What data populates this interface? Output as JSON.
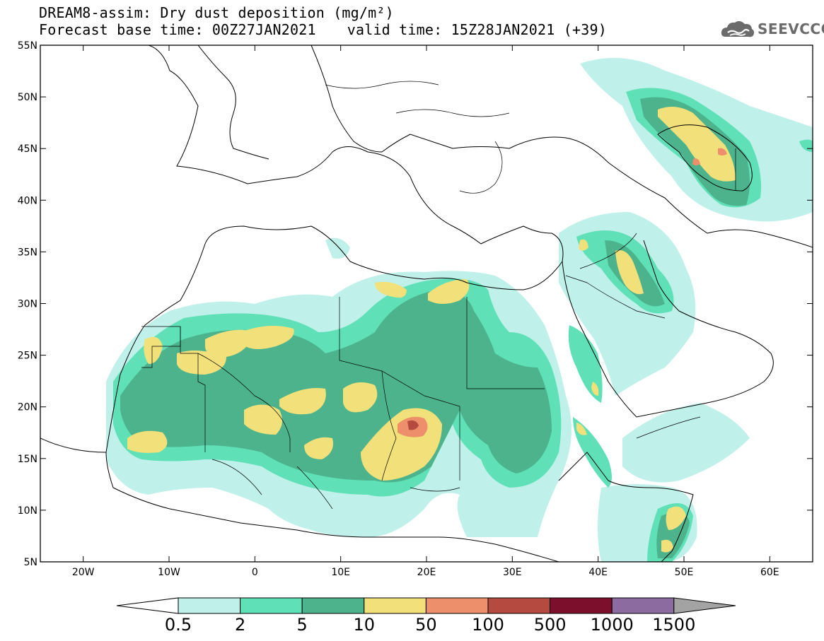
{
  "title": {
    "line1": "DREAM8-assim: Dry dust deposition (mg/m²)",
    "base_label": "Forecast base time: 00Z27JAN2021",
    "valid_label": "valid time: 15Z28JAN2021 (+39)"
  },
  "logo": {
    "text": "SEEVCCC",
    "icon": "cloud-icon"
  },
  "map": {
    "lon_ticks": [
      "20W",
      "10W",
      "0",
      "10E",
      "20E",
      "30E",
      "40E",
      "50E",
      "60E"
    ],
    "lat_ticks": [
      "55N",
      "50N",
      "45N",
      "40N",
      "35N",
      "30N",
      "25N",
      "20N",
      "15N",
      "10N",
      "5N"
    ],
    "lon_range": [
      -25,
      65
    ],
    "lat_range": [
      5,
      55
    ]
  },
  "colorbar": {
    "labels": [
      "0.5",
      "2",
      "5",
      "10",
      "50",
      "100",
      "500",
      "1000",
      "1500"
    ],
    "colors": [
      "#bff0ea",
      "#5fe0b7",
      "#4cb38c",
      "#f2e07a",
      "#ec8f6a",
      "#b54b40",
      "#7c0f2c",
      "#8c6ba0"
    ],
    "under_color": "#ffffff",
    "over_color": "#a3a3a3"
  }
}
